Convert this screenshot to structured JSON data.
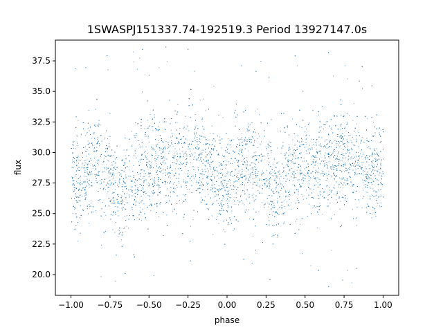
{
  "chart_data": {
    "type": "scatter",
    "title": "1SWASPJ151337.74-192519.3 Period 13927147.0s",
    "xlabel": "phase",
    "ylabel": "flux",
    "xlim": [
      -1.1,
      1.1
    ],
    "ylim": [
      18.3,
      39.2
    ],
    "x_ticks": [
      -1.0,
      -0.75,
      -0.5,
      -0.25,
      0.0,
      0.25,
      0.5,
      0.75,
      1.0
    ],
    "x_tick_labels": [
      "−1.00",
      "−0.75",
      "−0.50",
      "−0.25",
      "0.00",
      "0.25",
      "0.50",
      "0.75",
      "1.00"
    ],
    "y_ticks": [
      20.0,
      22.5,
      25.0,
      27.5,
      30.0,
      32.5,
      35.0,
      37.5
    ],
    "y_tick_labels": [
      "20.0",
      "22.5",
      "25.0",
      "27.5",
      "30.0",
      "32.5",
      "35.0",
      "37.5"
    ],
    "grid": false,
    "point_color": "#1f77b4",
    "series": [
      {
        "x_range": [
          -1.0,
          1.0
        ],
        "baseline_flux": 28.8,
        "typical_spread": [
          24.5,
          32.5
        ],
        "full_range": [
          19.0,
          38.8
        ],
        "profile": [
          {
            "phase": -1.0,
            "flux": 28.5
          },
          {
            "phase": -0.95,
            "flux": 27.5
          },
          {
            "phase": -0.85,
            "flux": 29.5
          },
          {
            "phase": -0.75,
            "flux": 28.0
          },
          {
            "phase": -0.7,
            "flux": 26.5
          },
          {
            "phase": -0.6,
            "flux": 28.0
          },
          {
            "phase": -0.5,
            "flux": 29.0
          },
          {
            "phase": -0.3,
            "flux": 29.0
          },
          {
            "phase": -0.2,
            "flux": 30.0
          },
          {
            "phase": -0.1,
            "flux": 28.5
          },
          {
            "phase": 0.0,
            "flux": 27.0
          },
          {
            "phase": 0.05,
            "flux": 28.5
          },
          {
            "phase": 0.15,
            "flux": 29.5
          },
          {
            "phase": 0.25,
            "flux": 28.5
          },
          {
            "phase": 0.3,
            "flux": 26.5
          },
          {
            "phase": 0.4,
            "flux": 28.5
          },
          {
            "phase": 0.5,
            "flux": 29.0
          },
          {
            "phase": 0.7,
            "flux": 29.0
          },
          {
            "phase": 0.8,
            "flux": 30.0
          },
          {
            "phase": 0.9,
            "flux": 28.5
          },
          {
            "phase": 1.0,
            "flux": 28.5
          }
        ]
      }
    ]
  }
}
